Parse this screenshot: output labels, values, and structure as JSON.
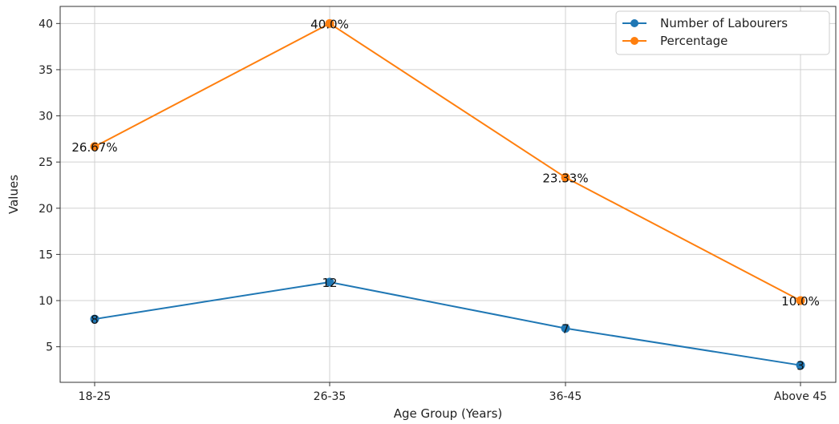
{
  "chart_data": {
    "type": "line",
    "categories": [
      "18-25",
      "26-35",
      "36-45",
      "Above 45"
    ],
    "series": [
      {
        "name": "Number of Labourers",
        "values": [
          8,
          12,
          7,
          3
        ],
        "labels": [
          "8",
          "12",
          "7",
          "3"
        ],
        "color": "#1f77b4"
      },
      {
        "name": "Percentage",
        "values": [
          26.67,
          40.0,
          23.33,
          10.0
        ],
        "labels": [
          "26.67%",
          "40.0%",
          "23.33%",
          "10.0%"
        ],
        "color": "#ff7f0e"
      }
    ],
    "title": "",
    "xlabel": "Age Group (Years)",
    "ylabel": "Values",
    "ylim": [
      1.15,
      41.85
    ],
    "yticks": [
      5,
      10,
      15,
      20,
      25,
      30,
      35,
      40
    ],
    "grid": true,
    "legend_position": "top-right"
  }
}
